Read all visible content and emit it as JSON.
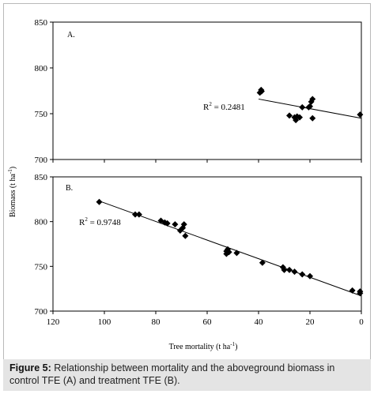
{
  "caption": {
    "label": "Figure 5:",
    "text": " Relationship between mortality and the aboveground biomass in control TFE (A) and treatment TFE (B)."
  },
  "colors": {
    "marker": "#000000",
    "line": "#000000",
    "caption_bg": "#e4e4e4"
  },
  "chart_data": [
    {
      "type": "scatter",
      "panel": "A.",
      "xlabel": "Tree mortality (t ha-1)",
      "ylabel": "Biomass (t ha-1)",
      "ylim": [
        700,
        850
      ],
      "yticks": [
        700,
        750,
        800,
        850
      ],
      "yticklabels": [
        "700",
        "750",
        "800",
        "850"
      ],
      "xlim": [
        120,
        0
      ],
      "x_reversed": true,
      "annotation": "R2 = 0.2481",
      "points": [
        {
          "x": 39.5,
          "y": 773
        },
        {
          "x": 39,
          "y": 776
        },
        {
          "x": 38.8,
          "y": 774.5
        },
        {
          "x": 28,
          "y": 748
        },
        {
          "x": 26,
          "y": 746
        },
        {
          "x": 25.5,
          "y": 743
        },
        {
          "x": 25,
          "y": 747
        },
        {
          "x": 24,
          "y": 746
        },
        {
          "x": 23,
          "y": 757
        },
        {
          "x": 20.5,
          "y": 757
        },
        {
          "x": 20,
          "y": 758
        },
        {
          "x": 19.5,
          "y": 763
        },
        {
          "x": 19,
          "y": 766
        },
        {
          "x": 19,
          "y": 745
        },
        {
          "x": 0.5,
          "y": 749
        }
      ],
      "trendline": [
        {
          "x": 40,
          "y": 766
        },
        {
          "x": 0,
          "y": 745
        }
      ]
    },
    {
      "type": "scatter",
      "panel": "B.",
      "xlabel": "Tree mortality (t ha-1)",
      "ylabel": "Biomass (t ha-1)",
      "ylim": [
        700,
        850
      ],
      "yticks": [
        700,
        750,
        800,
        850
      ],
      "yticklabels": [
        "700",
        "750",
        "800",
        "850"
      ],
      "xlim": [
        120,
        0
      ],
      "xticks": [
        120,
        100,
        80,
        60,
        40,
        20,
        0
      ],
      "xticklabels": [
        "120",
        "100",
        "80",
        "60",
        "40",
        "20",
        "0"
      ],
      "x_reversed": true,
      "annotation": "R2 = 0.9748",
      "points": [
        {
          "x": 102,
          "y": 822
        },
        {
          "x": 88,
          "y": 808
        },
        {
          "x": 86.5,
          "y": 808
        },
        {
          "x": 78,
          "y": 801
        },
        {
          "x": 76.5,
          "y": 799
        },
        {
          "x": 75.5,
          "y": 798
        },
        {
          "x": 72.5,
          "y": 797
        },
        {
          "x": 70.5,
          "y": 790
        },
        {
          "x": 69.5,
          "y": 793
        },
        {
          "x": 69,
          "y": 797
        },
        {
          "x": 68.5,
          "y": 784
        },
        {
          "x": 52.5,
          "y": 767
        },
        {
          "x": 52.5,
          "y": 764
        },
        {
          "x": 52,
          "y": 769
        },
        {
          "x": 51.5,
          "y": 766
        },
        {
          "x": 48.5,
          "y": 765
        },
        {
          "x": 38.5,
          "y": 754
        },
        {
          "x": 30.5,
          "y": 749
        },
        {
          "x": 30,
          "y": 746
        },
        {
          "x": 28,
          "y": 746
        },
        {
          "x": 26,
          "y": 744
        },
        {
          "x": 23,
          "y": 741
        },
        {
          "x": 20,
          "y": 739
        },
        {
          "x": 3.5,
          "y": 723
        },
        {
          "x": 0.5,
          "y": 722
        },
        {
          "x": 0.5,
          "y": 720
        }
      ],
      "trendline": [
        {
          "x": 102,
          "y": 823
        },
        {
          "x": 0,
          "y": 717
        }
      ]
    }
  ]
}
